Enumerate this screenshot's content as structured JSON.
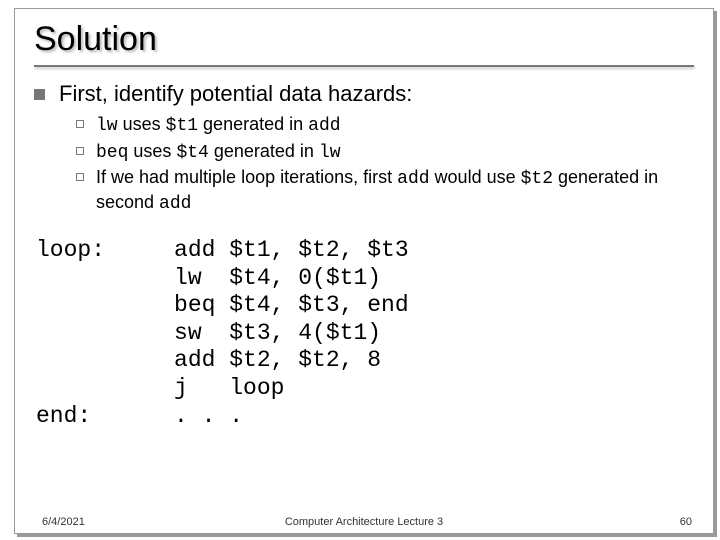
{
  "title": "Solution",
  "intro": "First, identify potential data hazards:",
  "subpoints": [
    {
      "pre1": "lw",
      "mid1": " uses ",
      "code1": "$t1",
      "mid2": " generated in ",
      "post": "add"
    },
    {
      "pre1": "beq",
      "mid1": " uses ",
      "code1": "$t4",
      "mid2": " generated in ",
      "post": "lw"
    }
  ],
  "sub3": {
    "a": "If we had multiple loop iterations, first ",
    "b": "add",
    "c": " would use ",
    "d": "$t2",
    "e": " generated in second ",
    "f": "add"
  },
  "code": "loop:     add $t1, $t2, $t3\n          lw  $t4, 0($t1)\n          beq $t4, $t3, end\n          sw  $t3, 4($t1)\n          add $t2, $t2, 8\n          j   loop\nend:      . . .",
  "footer": {
    "date": "6/4/2021",
    "center": "Computer Architecture Lecture 3",
    "page": "60"
  }
}
